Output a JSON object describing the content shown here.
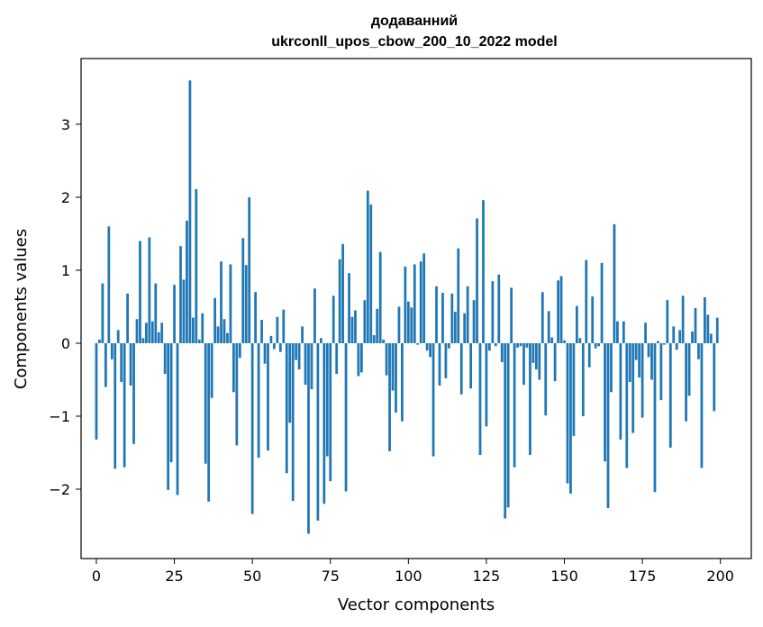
{
  "chart_data": {
    "type": "bar",
    "title": "додаванний",
    "subtitle": "ukrconll_upos_cbow_200_10_2022 model",
    "xlabel": "Vector components",
    "ylabel": "Components values",
    "xlim": [
      -4.9,
      209.9
    ],
    "ylim": [
      -2.95,
      3.9
    ],
    "xticks": [
      0,
      25,
      50,
      75,
      100,
      125,
      150,
      175,
      200
    ],
    "yticks": [
      -2,
      -1,
      0,
      1,
      2,
      3
    ],
    "ytick_labels": [
      "−2",
      "−1",
      "0",
      "1",
      "2",
      "3"
    ],
    "grid": false,
    "legend": "none",
    "bar_color": "#1f77b4",
    "x": [
      0,
      1,
      2,
      3,
      4,
      5,
      6,
      7,
      8,
      9,
      10,
      11,
      12,
      13,
      14,
      15,
      16,
      17,
      18,
      19,
      20,
      21,
      22,
      23,
      24,
      25,
      26,
      27,
      28,
      29,
      30,
      31,
      32,
      33,
      34,
      35,
      36,
      37,
      38,
      39,
      40,
      41,
      42,
      43,
      44,
      45,
      46,
      47,
      48,
      49,
      50,
      51,
      52,
      53,
      54,
      55,
      56,
      57,
      58,
      59,
      60,
      61,
      62,
      63,
      64,
      65,
      66,
      67,
      68,
      69,
      70,
      71,
      72,
      73,
      74,
      75,
      76,
      77,
      78,
      79,
      80,
      81,
      82,
      83,
      84,
      85,
      86,
      87,
      88,
      89,
      90,
      91,
      92,
      93,
      94,
      95,
      96,
      97,
      98,
      99,
      100,
      101,
      102,
      103,
      104,
      105,
      106,
      107,
      108,
      109,
      110,
      111,
      112,
      113,
      114,
      115,
      116,
      117,
      118,
      119,
      120,
      121,
      122,
      123,
      124,
      125,
      126,
      127,
      128,
      129,
      130,
      131,
      132,
      133,
      134,
      135,
      136,
      137,
      138,
      139,
      140,
      141,
      142,
      143,
      144,
      145,
      146,
      147,
      148,
      149,
      150,
      151,
      152,
      153,
      154,
      155,
      156,
      157,
      158,
      159,
      160,
      161,
      162,
      163,
      164,
      165,
      166,
      167,
      168,
      169,
      170,
      171,
      172,
      173,
      174,
      175,
      176,
      177,
      178,
      179,
      180,
      181,
      182,
      183,
      184,
      185,
      186,
      187,
      188,
      189,
      190,
      191,
      192,
      193,
      194,
      195,
      196,
      197,
      198,
      199
    ],
    "values": [
      -1.32,
      0.05,
      0.82,
      -0.6,
      1.6,
      -0.22,
      -1.72,
      0.18,
      -0.53,
      -1.7,
      0.68,
      -0.58,
      -1.38,
      0.33,
      1.4,
      0.07,
      0.28,
      1.45,
      0.3,
      0.82,
      0.15,
      0.28,
      -0.42,
      -2.01,
      -1.63,
      0.8,
      -2.08,
      1.33,
      0.87,
      1.68,
      3.6,
      0.35,
      2.11,
      0.05,
      0.41,
      -1.65,
      -2.17,
      -0.75,
      0.62,
      0.23,
      1.12,
      0.33,
      0.14,
      1.08,
      -0.67,
      -1.4,
      -0.2,
      1.44,
      1.07,
      2.0,
      -2.34,
      0.7,
      -1.57,
      0.32,
      -0.28,
      -1.47,
      0.1,
      -0.08,
      0.36,
      -0.12,
      0.46,
      -1.78,
      -1.09,
      -2.16,
      -0.23,
      -0.36,
      0.23,
      -0.57,
      -2.61,
      -0.63,
      0.75,
      -2.43,
      0.07,
      -2.2,
      -1.55,
      -1.89,
      0.65,
      -0.42,
      1.15,
      1.36,
      -2.03,
      0.96,
      0.36,
      0.45,
      -0.45,
      -0.4,
      0.59,
      2.09,
      1.9,
      0.11,
      0.47,
      1.25,
      0.05,
      -0.44,
      -1.48,
      -0.65,
      -0.95,
      0.5,
      -1.07,
      1.05,
      0.57,
      0.49,
      1.08,
      -0.02,
      1.12,
      1.23,
      -0.1,
      -0.19,
      -1.55,
      0.78,
      -0.58,
      0.69,
      -0.48,
      -0.07,
      0.68,
      0.43,
      1.3,
      -0.7,
      0.41,
      0.78,
      -0.62,
      0.59,
      1.71,
      -1.53,
      1.96,
      -1.14,
      -0.1,
      0.85,
      -0.04,
      0.94,
      -0.26,
      -2.4,
      -2.25,
      0.76,
      -1.7,
      -0.06,
      -0.04,
      -0.57,
      -0.06,
      -1.53,
      -0.27,
      -0.36,
      -0.5,
      0.7,
      -0.99,
      0.44,
      0.08,
      -0.52,
      0.86,
      0.92,
      0.04,
      -1.92,
      -2.06,
      -1.27,
      0.51,
      0.07,
      -1.0,
      1.14,
      -0.33,
      0.64,
      -0.07,
      -0.04,
      1.1,
      -1.62,
      -2.26,
      -0.67,
      1.63,
      0.3,
      -1.32,
      0.3,
      -1.71,
      -0.53,
      -1.23,
      -0.23,
      -0.47,
      -1.02,
      0.28,
      -0.19,
      -0.5,
      -2.04,
      0.03,
      -0.78,
      -0.02,
      0.59,
      -1.43,
      0.23,
      -0.09,
      0.18,
      0.65,
      -1.07,
      -0.72,
      0.16,
      0.48,
      -0.22,
      -1.71,
      0.63,
      0.39,
      0.13,
      -0.93,
      0.35
    ]
  }
}
